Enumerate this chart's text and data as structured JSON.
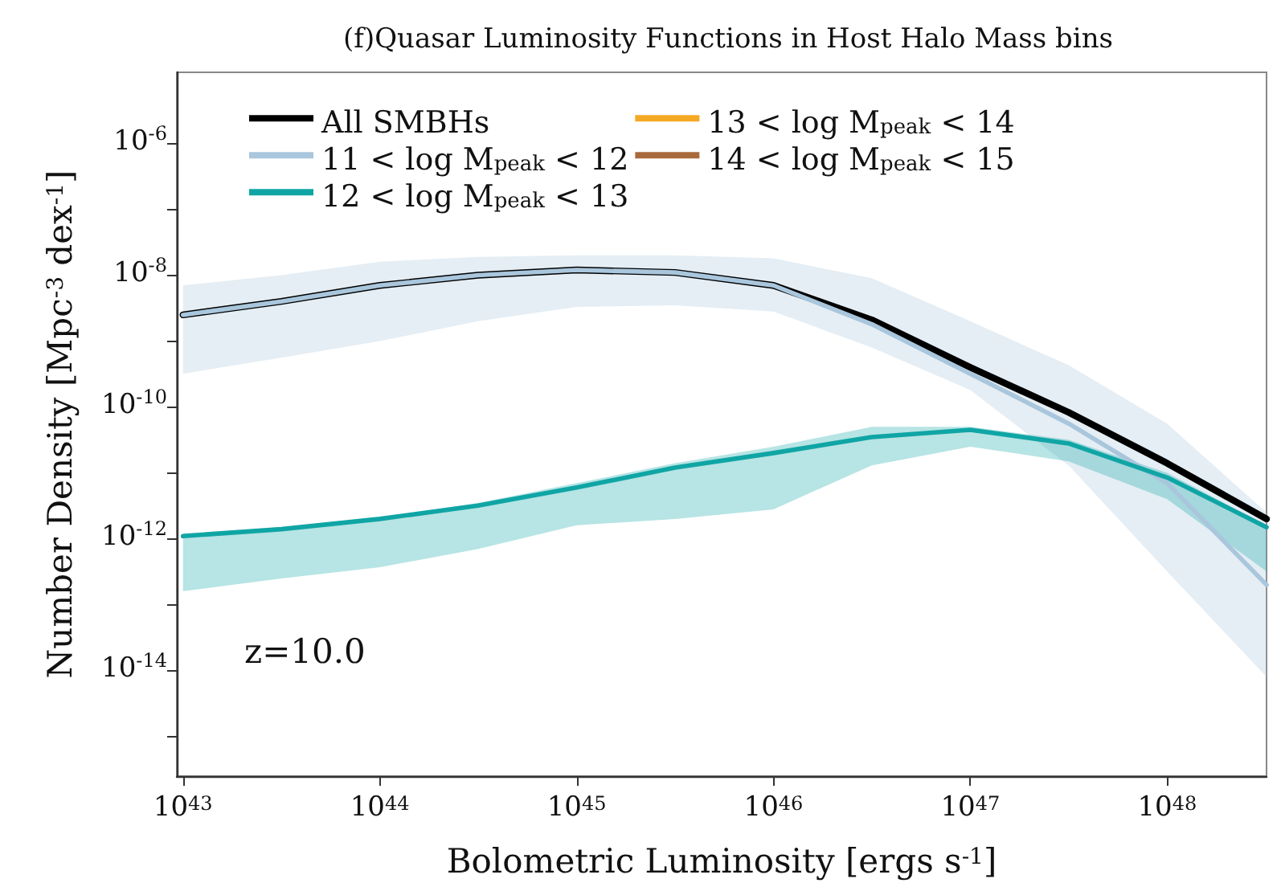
{
  "chart_data": {
    "type": "line",
    "title": "(f)Quasar Luminosity Functions in Host Halo Mass bins",
    "xlabel": "Bolometric Luminosity [ergs s$^{-1}$]",
    "ylabel": "Number Density [Mpc$^{-3}$ dex$^{-1}$]",
    "annotations": [
      "z=10.0"
    ],
    "log": "xy",
    "grid": false,
    "legend": "top",
    "line_style": "solid",
    "marker": "none",
    "x": [
      1e+43,
      3.16e+43,
      1e+44,
      3.16e+44,
      1e+45,
      3.16e+45,
      1e+46,
      3.16e+46,
      1e+47,
      3.16e+47,
      1e+48,
      3.2e+48
    ],
    "xlim": [
      9.3e+42,
      3.2e+48
    ],
    "ylim": [
      2.5e-16,
      1.2e-05
    ],
    "xticks": [
      {
        "value": 1e+43,
        "label": "10$^{43}$"
      },
      {
        "value": 1e+44,
        "label": "10$^{44}$"
      },
      {
        "value": 1e+45,
        "label": "10$^{45}$"
      },
      {
        "value": 1e+46,
        "label": "10$^{46}$"
      },
      {
        "value": 1e+47,
        "label": "10$^{47}$"
      },
      {
        "value": 1e+48,
        "label": "10$^{48}$"
      }
    ],
    "yticks": [
      {
        "value": 1e-15,
        "label": null
      },
      {
        "value": 1e-14,
        "label": "10$^{-14}$"
      },
      {
        "value": 1e-13,
        "label": null
      },
      {
        "value": 1e-12,
        "label": "10$^{-12}$"
      },
      {
        "value": 1e-11,
        "label": null
      },
      {
        "value": 1e-10,
        "label": "10$^{-10}$"
      },
      {
        "value": 1e-09,
        "label": null
      },
      {
        "value": 1e-08,
        "label": "10$^{-8}$"
      },
      {
        "value": 1e-07,
        "label": null
      },
      {
        "value": 1e-06,
        "label": "10$^{-6}$"
      }
    ],
    "series": [
      {
        "name": "All SMBHs",
        "color": "#000000",
        "values": [
          2.5e-09,
          4e-09,
          7e-09,
          1e-08,
          1.2e-08,
          1.1e-08,
          7e-09,
          2.1e-09,
          4e-10,
          8.3e-11,
          1.4e-11,
          2e-12
        ]
      },
      {
        "name": "11 < log M$_{peak}$ < 12",
        "color": "#a9c6dc",
        "values": [
          2.5e-09,
          4e-09,
          7e-09,
          1e-08,
          1.2e-08,
          1.1e-08,
          7e-09,
          1.8e-09,
          3.2e-10,
          5.6e-11,
          7e-12,
          2e-13
        ],
        "upper": [
          7e-09,
          1e-08,
          1.6e-08,
          1.9e-08,
          2e-08,
          2e-08,
          1.8e-08,
          9e-09,
          2e-09,
          4.3e-10,
          5.6e-11,
          2.5e-12
        ],
        "lower": [
          3.2e-10,
          5.6e-10,
          1e-09,
          2e-09,
          3.3e-09,
          3.5e-09,
          2.8e-09,
          8e-10,
          1.8e-10,
          1.3e-11,
          3.2e-13,
          8e-15
        ]
      },
      {
        "name": "12 < log M$_{peak}$ < 13",
        "color": "#10a5a5",
        "values": [
          1.1e-12,
          1.4e-12,
          2e-12,
          3.2e-12,
          6e-12,
          1.2e-11,
          2e-11,
          3.5e-11,
          4.5e-11,
          2.8e-11,
          8.5e-12,
          1.5e-12
        ],
        "upper": [
          1.2e-12,
          1.5e-12,
          2.1e-12,
          3.5e-12,
          7e-12,
          1.4e-11,
          2.5e-11,
          5e-11,
          5e-11,
          3.2e-11,
          1e-11,
          1.6e-12
        ],
        "lower": [
          1.6e-13,
          2.5e-13,
          3.7e-13,
          7e-13,
          1.6e-12,
          2e-12,
          2.8e-12,
          1.3e-11,
          2.5e-11,
          1.5e-11,
          4e-12,
          3.2e-13
        ]
      },
      {
        "name": "13 < log M$_{peak}$ < 14",
        "color": "#f5a823",
        "values": [
          null,
          null,
          null,
          null,
          null,
          null,
          null,
          null,
          null,
          null,
          null,
          null
        ]
      },
      {
        "name": "14 < log M$_{peak}$ < 15",
        "color": "#a86a3c",
        "values": [
          null,
          null,
          null,
          null,
          null,
          null,
          null,
          null,
          null,
          null,
          null,
          null
        ]
      }
    ]
  }
}
